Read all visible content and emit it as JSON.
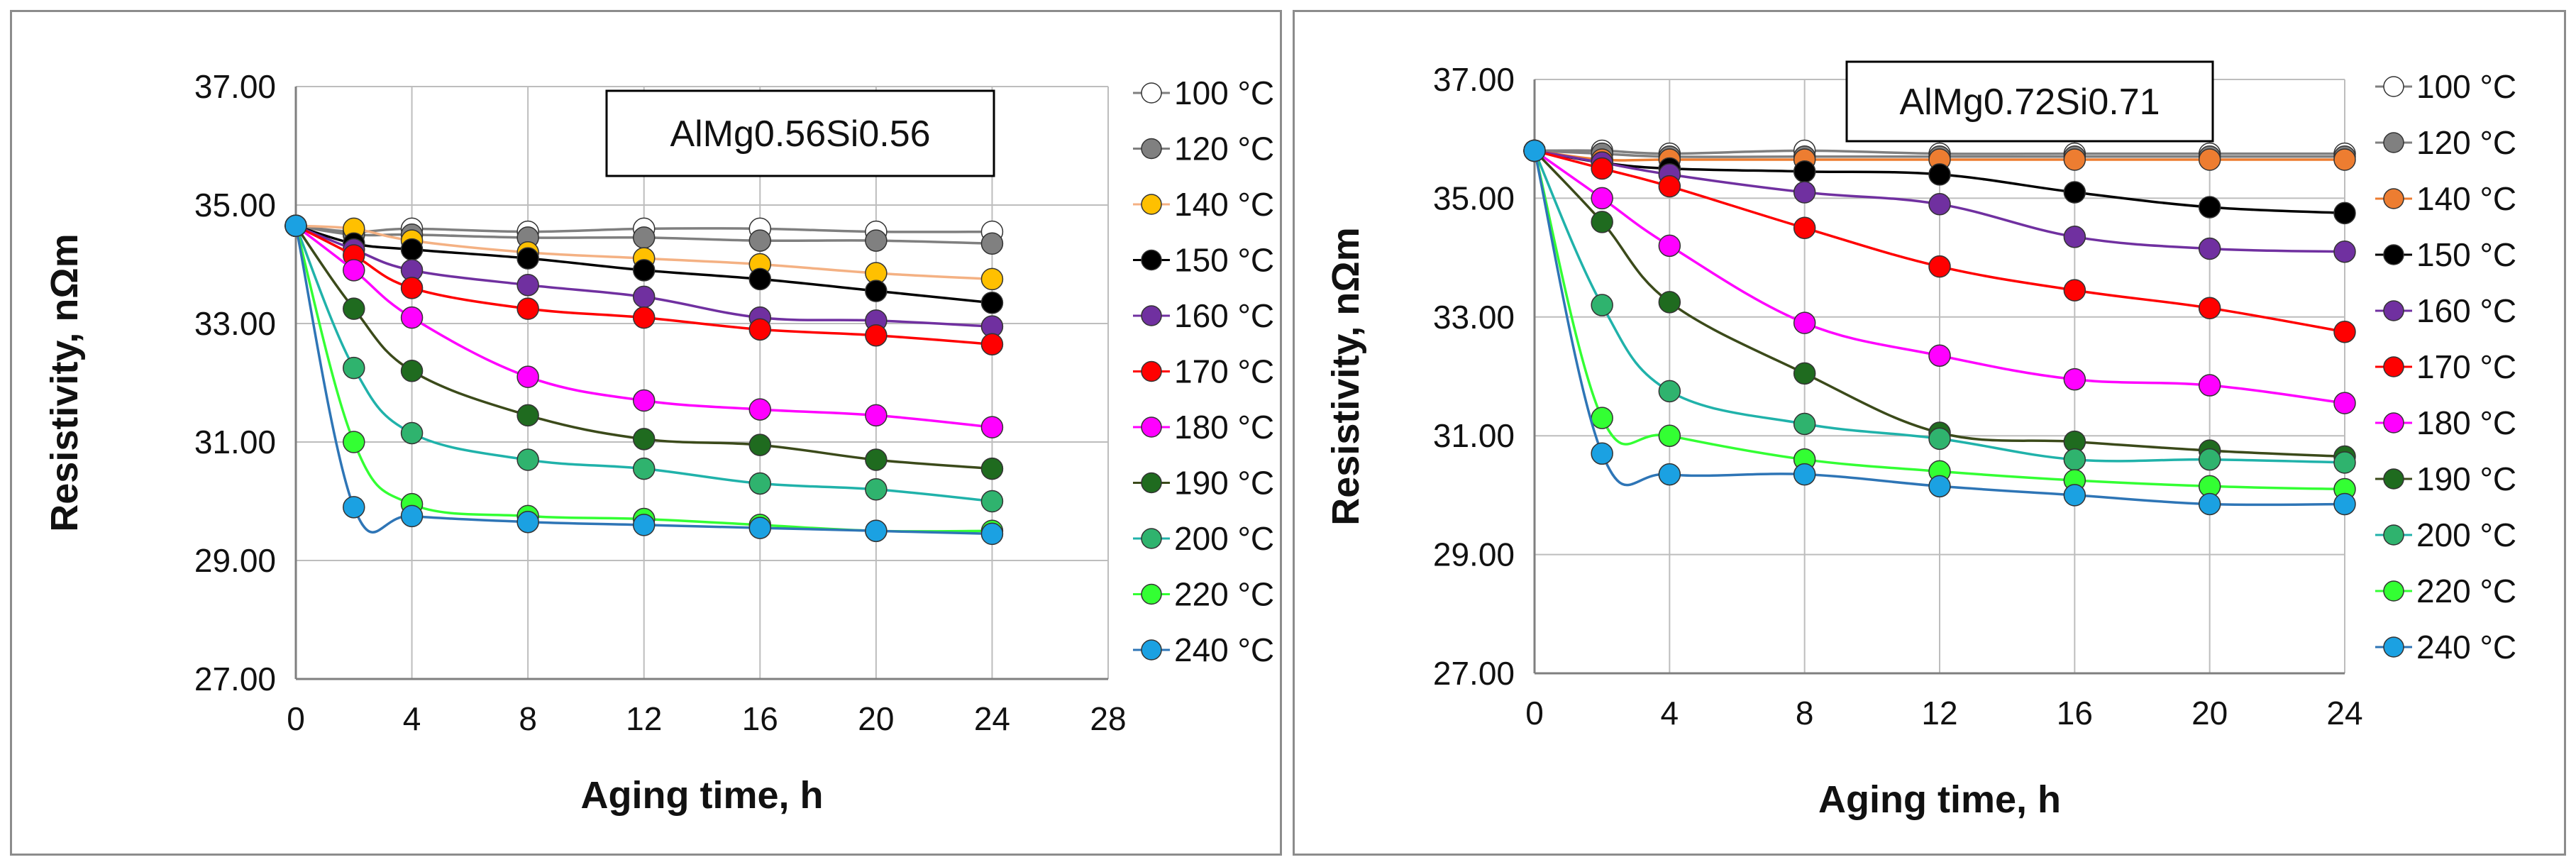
{
  "chart_data": [
    {
      "type": "line",
      "title": "AlMg0.56Si0.56",
      "xlabel": "Aging time, h",
      "ylabel": "Resistivity, nΩm",
      "xlim": [
        0,
        28
      ],
      "ylim": [
        27,
        37
      ],
      "xticks": [
        "0",
        "4",
        "8",
        "12",
        "16",
        "20",
        "24",
        "28"
      ],
      "yticks": [
        "27.00",
        "29.00",
        "31.00",
        "33.00",
        "35.00",
        "37.00"
      ],
      "grid": true,
      "legend_position": "right",
      "x": [
        0,
        2,
        4,
        8,
        12,
        16,
        20,
        24
      ],
      "series": [
        {
          "name": "100 °C",
          "marker": "#ffffff",
          "line": "#7f7f7f",
          "values": [
            34.65,
            34.55,
            34.6,
            34.55,
            34.6,
            34.6,
            34.55,
            34.55
          ]
        },
        {
          "name": "120 °C",
          "marker": "#808080",
          "line": "#7f7f7f",
          "values": [
            34.65,
            34.5,
            34.5,
            34.45,
            34.45,
            34.4,
            34.4,
            34.35
          ]
        },
        {
          "name": "140 °C",
          "marker": "#ffc000",
          "line": "#f4b183",
          "values": [
            34.65,
            34.6,
            34.4,
            34.2,
            34.1,
            34.0,
            33.85,
            33.75
          ]
        },
        {
          "name": "150 °C",
          "marker": "#000000",
          "line": "#000000",
          "values": [
            34.65,
            34.35,
            34.25,
            34.1,
            33.9,
            33.75,
            33.55,
            33.35
          ]
        },
        {
          "name": "160 °C",
          "marker": "#7030a0",
          "line": "#7030a0",
          "values": [
            34.65,
            34.25,
            33.9,
            33.65,
            33.45,
            33.1,
            33.05,
            32.95
          ]
        },
        {
          "name": "170 °C",
          "marker": "#ff0000",
          "line": "#ff0000",
          "values": [
            34.65,
            34.15,
            33.6,
            33.25,
            33.1,
            32.9,
            32.8,
            32.65
          ]
        },
        {
          "name": "180 °C",
          "marker": "#ff00ff",
          "line": "#ff00ff",
          "values": [
            34.65,
            33.9,
            33.1,
            32.1,
            31.7,
            31.55,
            31.45,
            31.25
          ]
        },
        {
          "name": "190 °C",
          "marker": "#1f6b1f",
          "line": "#3b4a1a",
          "values": [
            34.65,
            33.25,
            32.2,
            31.45,
            31.05,
            30.95,
            30.7,
            30.55
          ]
        },
        {
          "name": "200 °C",
          "marker": "#2fb36e",
          "line": "#20b2aa",
          "values": [
            34.65,
            32.25,
            31.15,
            30.7,
            30.55,
            30.3,
            30.2,
            30.0
          ]
        },
        {
          "name": "220 °C",
          "marker": "#33ff33",
          "line": "#33ff33",
          "values": [
            34.65,
            31.0,
            29.95,
            29.75,
            29.7,
            29.6,
            29.5,
            29.5
          ]
        },
        {
          "name": "240 °C",
          "marker": "#1ba1e2",
          "line": "#2e75b6",
          "values": [
            34.65,
            29.9,
            29.75,
            29.65,
            29.6,
            29.55,
            29.5,
            29.45
          ]
        }
      ]
    },
    {
      "type": "line",
      "title": "AlMg0.72Si0.71",
      "xlabel": "Aging time, h",
      "ylabel": "Resistivity, nΩm",
      "xlim": [
        0,
        24
      ],
      "ylim": [
        27,
        37
      ],
      "xticks": [
        "0",
        "4",
        "8",
        "12",
        "16",
        "20",
        "24"
      ],
      "yticks": [
        "27.00",
        "29.00",
        "31.00",
        "33.00",
        "35.00",
        "37.00"
      ],
      "grid": true,
      "legend_position": "right",
      "x": [
        0,
        2,
        4,
        8,
        12,
        16,
        20,
        24
      ],
      "series": [
        {
          "name": "100 °C",
          "marker": "#ffffff",
          "line": "#7f7f7f",
          "values": [
            35.8,
            35.8,
            35.75,
            35.8,
            35.75,
            35.75,
            35.75,
            35.75
          ]
        },
        {
          "name": "120 °C",
          "marker": "#808080",
          "line": "#7f7f7f",
          "values": [
            35.8,
            35.75,
            35.7,
            35.7,
            35.7,
            35.7,
            35.7,
            35.7
          ]
        },
        {
          "name": "140 °C",
          "marker": "#ed7d31",
          "line": "#ed7d31",
          "values": [
            35.8,
            35.65,
            35.65,
            35.65,
            35.65,
            35.65,
            35.65,
            35.65
          ]
        },
        {
          "name": "150 °C",
          "marker": "#000000",
          "line": "#000000",
          "values": [
            35.8,
            35.6,
            35.5,
            35.45,
            35.4,
            35.1,
            34.85,
            34.75
          ]
        },
        {
          "name": "160 °C",
          "marker": "#7030a0",
          "line": "#7030a0",
          "values": [
            35.8,
            35.6,
            35.4,
            35.1,
            34.9,
            34.35,
            34.15,
            34.1
          ]
        },
        {
          "name": "170 °C",
          "marker": "#ff0000",
          "line": "#ff0000",
          "values": [
            35.8,
            35.5,
            35.2,
            34.5,
            33.85,
            33.45,
            33.15,
            32.75
          ]
        },
        {
          "name": "180 °C",
          "marker": "#ff00ff",
          "line": "#ff00ff",
          "values": [
            35.8,
            35.0,
            34.2,
            32.9,
            32.35,
            31.95,
            31.85,
            31.55
          ]
        },
        {
          "name": "190 °C",
          "marker": "#1f6b1f",
          "line": "#3b4a1a",
          "values": [
            35.8,
            34.6,
            33.25,
            32.05,
            31.05,
            30.9,
            30.75,
            30.65
          ]
        },
        {
          "name": "200 °C",
          "marker": "#2fb36e",
          "line": "#20b2aa",
          "values": [
            35.8,
            33.2,
            31.75,
            31.2,
            30.95,
            30.6,
            30.6,
            30.55
          ]
        },
        {
          "name": "220 °C",
          "marker": "#33ff33",
          "line": "#33ff33",
          "values": [
            35.8,
            31.3,
            31.0,
            30.6,
            30.4,
            30.25,
            30.15,
            30.1
          ]
        },
        {
          "name": "240 °C",
          "marker": "#1ba1e2",
          "line": "#2e75b6",
          "values": [
            35.8,
            30.7,
            30.35,
            30.35,
            30.15,
            30.0,
            29.85,
            29.85
          ]
        }
      ]
    }
  ]
}
